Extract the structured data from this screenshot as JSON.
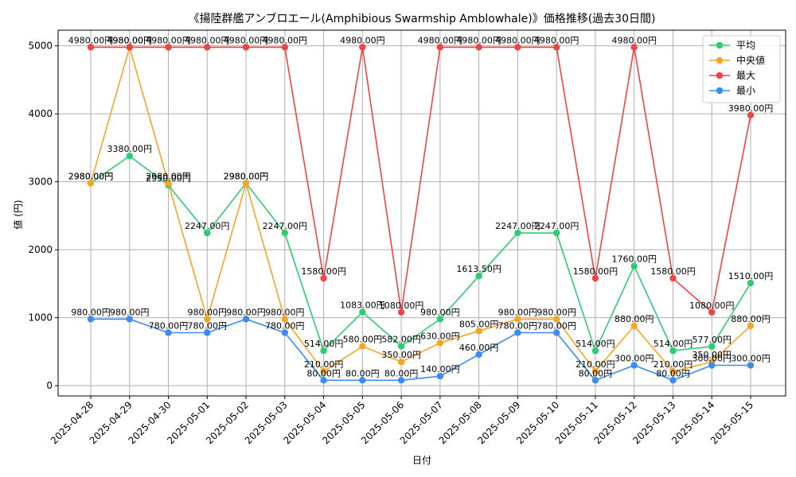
{
  "chart_data": {
    "type": "line",
    "title": "《揚陸群艦アンブロエール(Amphibious Swarmship Amblowhale)》価格推移(過去30日間)",
    "xlabel": "日付",
    "ylabel": "値 (円)",
    "ylim": [
      -150,
      5230
    ],
    "yticks": [
      0,
      1000,
      2000,
      3000,
      4000,
      5000
    ],
    "grid": true,
    "legend_position": "top-right",
    "x": [
      "2025-04-28",
      "2025-04-29",
      "2025-04-30",
      "2025-05-01",
      "2025-05-02",
      "2025-05-03",
      "2025-05-04",
      "2025-05-05",
      "2025-05-06",
      "2025-05-07",
      "2025-05-08",
      "2025-05-09",
      "2025-05-10",
      "2025-05-11",
      "2025-05-12",
      "2025-05-13",
      "2025-05-14",
      "2025-05-15"
    ],
    "series": [
      {
        "name": "平均",
        "color": "#2ecc71",
        "values": [
          2980,
          3380,
          2950,
          2247,
          2980,
          2247,
          514,
          1083,
          582,
          980,
          1613.5,
          2247,
          2247,
          514,
          1760,
          514,
          577,
          1510
        ]
      },
      {
        "name": "中央値",
        "color": "#f5a623",
        "values": [
          2980,
          4980,
          2980,
          980,
          2980,
          980,
          210,
          580,
          350,
          630,
          805,
          980,
          980,
          210,
          880,
          210,
          350,
          880
        ]
      },
      {
        "name": "最大",
        "color": "#ef4444",
        "values": [
          4980,
          4980,
          4980,
          4980,
          4980,
          4980,
          1580,
          4980,
          1080,
          4980,
          4980,
          4980,
          4980,
          1580,
          4980,
          1580,
          1080,
          3980
        ]
      },
      {
        "name": "最小",
        "color": "#3b8bf0",
        "values": [
          980,
          980,
          780,
          780,
          980,
          780,
          80,
          80,
          80,
          140,
          460,
          780,
          780,
          80,
          300,
          80,
          300,
          300
        ]
      }
    ],
    "data_labels": {
      "平均": [
        "2980.00円",
        "3380.00円",
        "2950.00円",
        "2247.00円",
        "2980.00円",
        "2247.00円",
        "514.00円",
        "1083.00円",
        "582.00円",
        "980.00円",
        "1613.50円",
        "2247.00円",
        "2247.00円",
        "514.00円",
        "1760.00円",
        "514.00円",
        "577.00円",
        "1510.00円"
      ],
      "中央値": [
        "2980.00円",
        "4980.00円",
        "2980.00円",
        "980.00円",
        "2980.00円",
        "980.00円",
        "210.00円",
        "580.00円",
        "350.00円",
        "630.00円",
        "805.00円",
        "980.00円",
        "980.00円",
        "210.00円",
        "880.00円",
        "210.00円",
        "350.00円",
        "880.00円"
      ],
      "最大": [
        "4980.00円",
        "4980.00円",
        "4980.00円",
        "4980.00円",
        "4980.00円",
        "4980.00円",
        "1580.00円",
        "4980.00円",
        "1080.00円",
        "4980.00円",
        "4980.00円",
        "4980.00円",
        "4980.00円",
        "1580.00円",
        "4980.00円",
        "1580.00円",
        "1080.00円",
        "3980.00円"
      ],
      "最小": [
        "980.00円",
        "980.00円",
        "780.00円",
        "780.00円",
        "980.00円",
        "780.00円",
        "80.00円",
        "80.00円",
        "80.00円",
        "140.00円",
        "460.00円",
        "780.00円",
        "780.00円",
        "80.00円",
        "300.00円",
        "80.00円",
        "300.00円",
        "300.00円"
      ]
    }
  }
}
